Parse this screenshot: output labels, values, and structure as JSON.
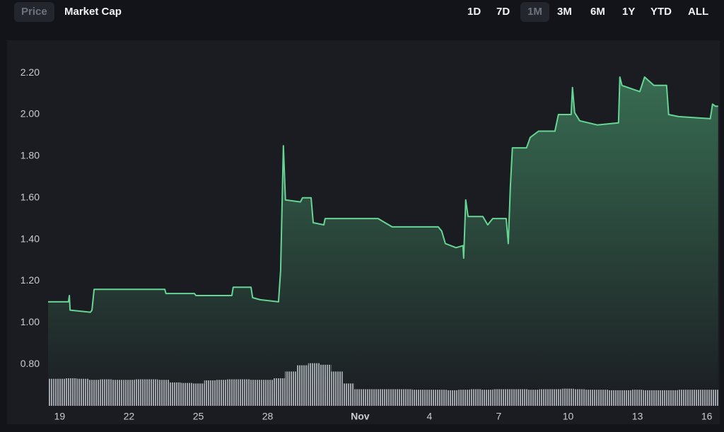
{
  "tabs": {
    "items": [
      "Price",
      "Market Cap"
    ],
    "selected": 0
  },
  "ranges": {
    "items": [
      "1D",
      "7D",
      "1M",
      "3M",
      "6M",
      "1Y",
      "YTD",
      "ALL"
    ],
    "selected": 2
  },
  "chart_data": {
    "type": "line",
    "x": [
      18.5,
      19.38,
      19.42,
      19.45,
      20.33,
      20.4,
      20.49,
      23.55,
      23.6,
      24.83,
      24.9,
      26.45,
      26.51,
      27.28,
      27.35,
      27.67,
      28.47,
      28.56,
      28.68,
      28.77,
      29.42,
      29.51,
      29.88,
      29.97,
      30.43,
      30.49,
      32.78,
      32.93,
      33.39,
      35.38,
      35.53,
      35.69,
      36.15,
      36.45,
      36.48,
      36.57,
      36.67,
      37.31,
      37.52,
      37.74,
      38.32,
      38.41,
      38.5,
      38.59,
      39.2,
      39.36,
      39.72,
      40.43,
      40.58,
      41.13,
      41.19,
      41.28,
      41.5,
      42.26,
      43.18,
      43.24,
      43.33,
      44.1,
      44.31,
      44.71,
      45.26,
      45.35,
      45.78,
      47.15,
      47.25,
      47.37,
      47.49
    ],
    "series": [
      {
        "color": "#66d594",
        "values": [
          1.1,
          1.1,
          1.13,
          1.06,
          1.05,
          1.06,
          1.16,
          1.16,
          1.14,
          1.14,
          1.13,
          1.13,
          1.17,
          1.17,
          1.12,
          1.11,
          1.1,
          1.25,
          1.85,
          1.59,
          1.58,
          1.6,
          1.6,
          1.48,
          1.47,
          1.5,
          1.5,
          1.49,
          1.46,
          1.46,
          1.44,
          1.38,
          1.36,
          1.37,
          1.31,
          1.59,
          1.51,
          1.51,
          1.47,
          1.5,
          1.5,
          1.38,
          1.65,
          1.84,
          1.84,
          1.89,
          1.92,
          1.92,
          2.0,
          2.0,
          2.13,
          2.01,
          1.97,
          1.95,
          1.96,
          2.18,
          2.14,
          2.11,
          2.18,
          2.14,
          2.14,
          2.0,
          1.99,
          1.98,
          2.05,
          2.04,
          2.04
        ]
      },
      {
        "type": "bar",
        "axis": "y2",
        "color": "#a3a6ae",
        "x": [
          18.5,
          19,
          19.5,
          20,
          20.5,
          21,
          21.5,
          22,
          22.5,
          23,
          23.5,
          24,
          24.5,
          25,
          25.5,
          26,
          26.5,
          27,
          27.5,
          28,
          28.5,
          29,
          29.5,
          30,
          30.5,
          31,
          31.5,
          32,
          32.5,
          33,
          33.5,
          34,
          34.5,
          35,
          35.5,
          36,
          36.5,
          37,
          37.5,
          38,
          38.5,
          39,
          39.5,
          40,
          40.5,
          41,
          41.5,
          42,
          42.5,
          43,
          43.5,
          44,
          44.5,
          45,
          45.5,
          46,
          46.5,
          47,
          47.5
        ],
        "values": [
          5.2,
          5.2,
          5.3,
          5.2,
          5.0,
          5.1,
          5.0,
          5.0,
          5.1,
          5.1,
          5.0,
          4.5,
          4.4,
          4.3,
          4.9,
          5.0,
          5.1,
          5.1,
          5.0,
          5.0,
          5.3,
          6.6,
          7.8,
          8.2,
          7.9,
          6.6,
          4.3,
          3.2,
          3.2,
          3.2,
          3.2,
          3.2,
          3.1,
          3.1,
          3.1,
          3.0,
          3.1,
          3.2,
          3.1,
          3.2,
          3.2,
          3.2,
          3.1,
          3.2,
          3.2,
          3.3,
          3.2,
          3.1,
          3.1,
          3.0,
          3.0,
          3.1,
          3.0,
          3.0,
          3.0,
          3.1,
          3.1,
          3.1,
          3.1
        ]
      }
    ],
    "xlim": [
      18.5,
      47.5
    ],
    "xticks": [
      19,
      22,
      25,
      28,
      {
        "value": 32,
        "label": "Nov"
      },
      {
        "value": 35,
        "label": "4"
      },
      {
        "value": 38,
        "label": "7"
      },
      {
        "value": 41,
        "label": "10"
      },
      {
        "value": 44,
        "label": "13"
      },
      {
        "value": 47,
        "label": "16"
      }
    ],
    "ylim": [
      0.6,
      2.35
    ],
    "yticks": [
      {
        "value": 0.8,
        "label": "0.80"
      },
      {
        "value": 1.0,
        "label": "1.00"
      },
      {
        "value": 1.2,
        "label": "1.20"
      },
      {
        "value": 1.4,
        "label": "1.40"
      },
      {
        "value": 1.6,
        "label": "1.60"
      },
      {
        "value": 1.8,
        "label": "1.80"
      },
      {
        "value": 2.0,
        "label": "2.00"
      },
      {
        "value": 2.2,
        "label": "2.20"
      }
    ],
    "y2lim": [
      0,
      70
    ],
    "grid": false
  }
}
